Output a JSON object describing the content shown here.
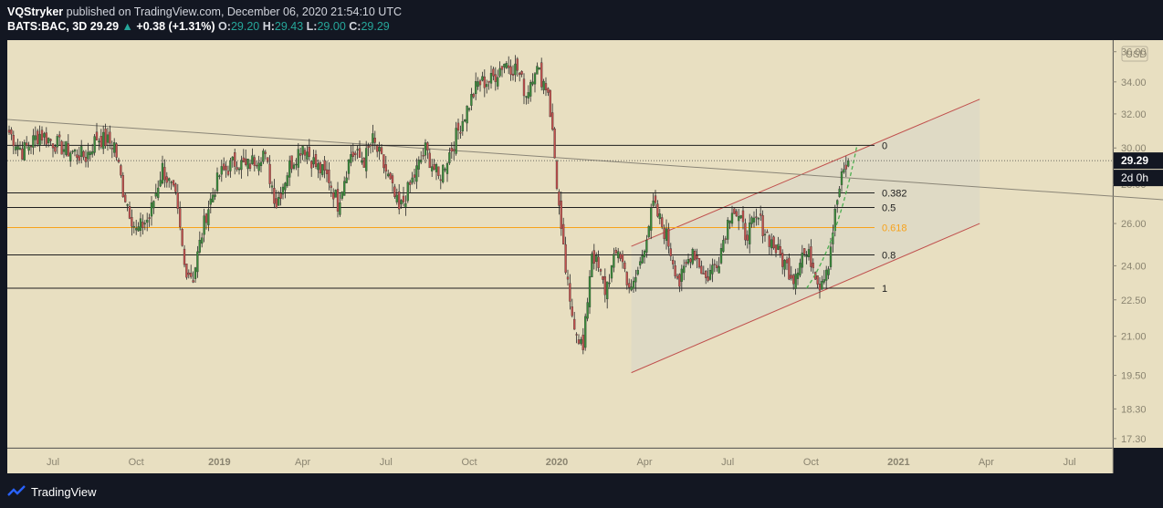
{
  "header": {
    "line1_author": "VQStryker",
    "line1_rest": "published on TradingView.com, December 06, 2020 21:54:10 UTC",
    "symbol": "BATS:BAC, 3D",
    "last": "29.29",
    "change": "+0.38 (+1.31%)",
    "o_label": "O:",
    "o": "29.20",
    "h_label": "H:",
    "h": "29.43",
    "l_label": "L:",
    "l": "29.00",
    "c_label": "C:",
    "c": "29.29"
  },
  "footer": {
    "brand": "TradingView"
  },
  "colors": {
    "background": "#131722",
    "plot": "#e8dfc1",
    "up": "#3b8a3b",
    "down": "#c0504d",
    "channel": "#c0504d",
    "fib618": "#f7a21b",
    "projection": "#4caf50"
  },
  "chart_data": {
    "type": "candlestick",
    "symbol": "BATS:BAC",
    "interval": "3D",
    "currency": "USD",
    "last_price": 29.29,
    "countdown": "2d 0h",
    "x_ticks": [
      "Jul",
      "Oct",
      "2019",
      "Apr",
      "Jul",
      "Oct",
      "2020",
      "Apr",
      "Jul",
      "Oct",
      "2021",
      "Apr",
      "Jul"
    ],
    "y_ticks": [
      "36.00",
      "34.00",
      "32.00",
      "30.00",
      "28.00",
      "26.00",
      "24.00",
      "22.50",
      "21.00",
      "19.50",
      "18.30",
      "17.30"
    ],
    "y_tick_values": [
      36,
      34,
      32,
      30,
      28,
      26,
      24,
      22.5,
      21,
      19.5,
      18.3,
      17.3
    ],
    "price_scale": "log",
    "ylim": [
      17.0,
      36.8
    ],
    "fib_levels": [
      {
        "label": "0",
        "price": 30.15
      },
      {
        "label": "0.382",
        "price": 27.55
      },
      {
        "label": "0.5",
        "price": 26.8
      },
      {
        "label": "0.618",
        "price": 25.8
      },
      {
        "label": "0.8",
        "price": 24.5
      },
      {
        "label": "1",
        "price": 23.0
      }
    ],
    "anchors": [
      [
        0,
        30.9
      ],
      [
        6,
        29.8
      ],
      [
        14,
        30.8
      ],
      [
        26,
        29.9
      ],
      [
        35,
        29.5
      ],
      [
        40,
        30.6
      ],
      [
        48,
        30.2
      ],
      [
        52,
        27.7
      ],
      [
        58,
        25.6
      ],
      [
        64,
        26.3
      ],
      [
        70,
        28.9
      ],
      [
        76,
        27.2
      ],
      [
        80,
        24.0
      ],
      [
        84,
        23.5
      ],
      [
        90,
        26.5
      ],
      [
        96,
        28.5
      ],
      [
        104,
        29.3
      ],
      [
        108,
        28.9
      ],
      [
        116,
        29.8
      ],
      [
        122,
        27.0
      ],
      [
        128,
        29.0
      ],
      [
        134,
        30.2
      ],
      [
        140,
        29.0
      ],
      [
        146,
        28.3
      ],
      [
        150,
        27.0
      ],
      [
        156,
        29.7
      ],
      [
        162,
        29.3
      ],
      [
        166,
        30.4
      ],
      [
        172,
        28.7
      ],
      [
        178,
        26.6
      ],
      [
        184,
        28.2
      ],
      [
        190,
        29.9
      ],
      [
        196,
        28.3
      ],
      [
        202,
        30.0
      ],
      [
        208,
        32.0
      ],
      [
        214,
        33.9
      ],
      [
        220,
        34.1
      ],
      [
        226,
        35.3
      ],
      [
        232,
        34.8
      ],
      [
        236,
        33.2
      ],
      [
        240,
        35.0
      ],
      [
        246,
        33.5
      ],
      [
        252,
        25.4
      ],
      [
        256,
        22.2
      ],
      [
        262,
        20.4
      ],
      [
        266,
        24.7
      ],
      [
        272,
        22.9
      ],
      [
        278,
        24.8
      ],
      [
        284,
        22.8
      ],
      [
        288,
        24.1
      ],
      [
        294,
        26.9
      ],
      [
        300,
        25.4
      ],
      [
        306,
        23.2
      ],
      [
        312,
        24.8
      ],
      [
        318,
        23.4
      ],
      [
        324,
        24.4
      ],
      [
        330,
        26.9
      ],
      [
        336,
        25.5
      ],
      [
        342,
        26.2
      ],
      [
        348,
        25.1
      ],
      [
        354,
        24.1
      ],
      [
        358,
        23.5
      ],
      [
        362,
        24.6
      ],
      [
        366,
        24.3
      ],
      [
        370,
        23.2
      ],
      [
        374,
        24.2
      ],
      [
        378,
        27.2
      ],
      [
        380,
        28.3
      ],
      [
        383,
        29.29
      ]
    ]
  }
}
